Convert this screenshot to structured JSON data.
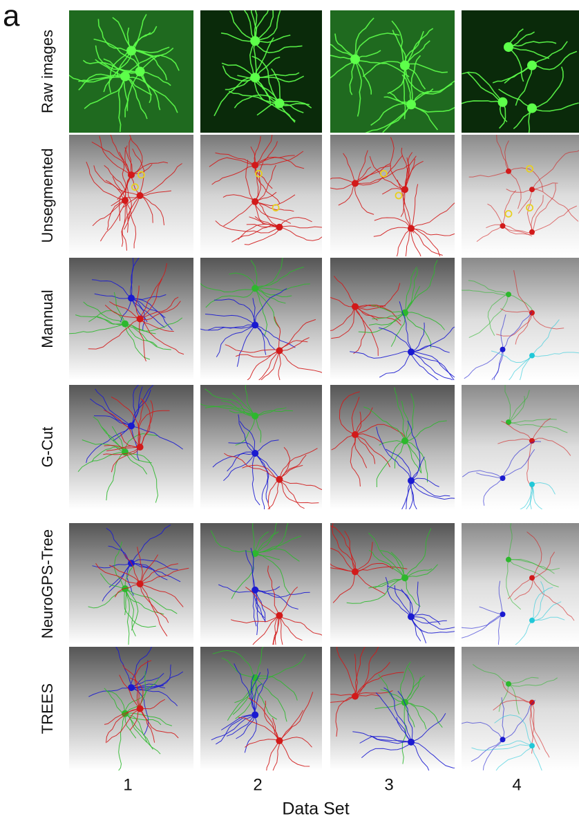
{
  "panel_label": "a",
  "rows": [
    {
      "label": "Raw images"
    },
    {
      "label": "Unsegmented"
    },
    {
      "label": "Mannual"
    },
    {
      "label": "G-Cut"
    },
    {
      "label": "NeuroGPS-Tree"
    },
    {
      "label": "TREES"
    }
  ],
  "columns": [
    "1",
    "2",
    "3",
    "4"
  ],
  "x_axis_title": "Data Set"
}
